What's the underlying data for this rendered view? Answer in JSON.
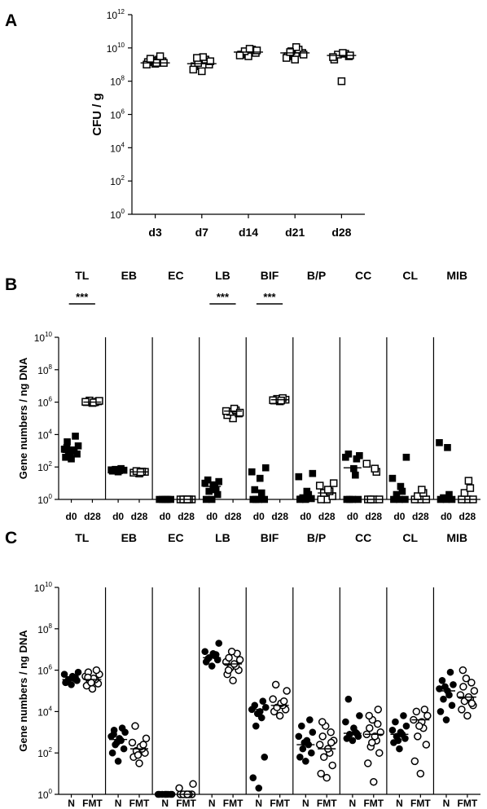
{
  "chart_data": [
    {
      "panel": "A",
      "type": "scatter",
      "ylabel": "CFU / g",
      "yscale": "log10",
      "ylim_exp": [
        0,
        12
      ],
      "yticks_exp": [
        0,
        2,
        4,
        6,
        8,
        10,
        12
      ],
      "categories": [
        "d3",
        "d7",
        "d14",
        "d21",
        "d28"
      ],
      "groups": [
        {
          "x": "d3",
          "marker": "open-square",
          "median_exp": 9.1,
          "points_exp": [
            9.05,
            9.15,
            9.2,
            9.25,
            9.3,
            9.1,
            9.0,
            9.1,
            9.35,
            9.5
          ]
        },
        {
          "x": "d7",
          "marker": "open-square",
          "median_exp": 9.05,
          "points_exp": [
            8.6,
            8.9,
            9.0,
            9.1,
            9.3,
            9.45,
            8.7,
            9.2,
            9.4
          ]
        },
        {
          "x": "d14",
          "marker": "open-square",
          "median_exp": 9.75,
          "points_exp": [
            9.5,
            9.6,
            9.7,
            9.8,
            9.9,
            9.95,
            9.55,
            9.85
          ]
        },
        {
          "x": "d21",
          "marker": "open-square",
          "median_exp": 9.7,
          "points_exp": [
            9.3,
            9.5,
            9.7,
            9.8,
            9.9,
            10.05,
            9.4,
            9.6,
            9.75
          ]
        },
        {
          "x": "d28",
          "marker": "open-square",
          "median_exp": 9.55,
          "points_exp": [
            8.0,
            9.3,
            9.5,
            9.6,
            9.65,
            9.7,
            9.45,
            9.55
          ]
        }
      ]
    },
    {
      "panel": "B",
      "type": "scatter",
      "ylabel": "Gene numbers / ng DNA",
      "yscale": "log10",
      "ylim_exp": [
        0,
        10
      ],
      "yticks_exp": [
        0,
        2,
        4,
        6,
        8,
        10
      ],
      "panels": [
        "TL",
        "EB",
        "EC",
        "LB",
        "BIF",
        "B/P",
        "CC",
        "CL",
        "MIB"
      ],
      "xticks": [
        "d0",
        "d28"
      ],
      "significance": {
        "TL": "***",
        "LB": "***",
        "BIF": "***"
      },
      "groups": [
        {
          "panel": "TL",
          "x": "d0",
          "marker": "filled-square",
          "median_exp": 2.9,
          "points_exp": [
            2.5,
            2.6,
            2.8,
            2.9,
            3.0,
            3.05,
            3.1,
            3.3,
            3.55,
            3.9,
            2.7,
            3.2
          ]
        },
        {
          "panel": "TL",
          "x": "d28",
          "marker": "open-square",
          "median_exp": 6.0,
          "points_exp": [
            5.95,
            6.0,
            6.05,
            6.1,
            6.0,
            5.98,
            6.02,
            6.08
          ]
        },
        {
          "panel": "EB",
          "x": "d0",
          "marker": "filled-square",
          "median_exp": 1.8,
          "points_exp": [
            1.7,
            1.75,
            1.8,
            1.85,
            1.9,
            1.78,
            1.82
          ]
        },
        {
          "panel": "EB",
          "x": "d28",
          "marker": "open-square",
          "median_exp": 1.7,
          "points_exp": [
            1.6,
            1.65,
            1.7,
            1.75,
            1.72,
            1.68
          ]
        },
        {
          "panel": "EC",
          "x": "d0",
          "marker": "filled-square",
          "median_exp": 0,
          "points_exp": [
            0,
            0,
            0,
            0,
            0,
            0
          ]
        },
        {
          "panel": "EC",
          "x": "d28",
          "marker": "open-square",
          "median_exp": 0,
          "points_exp": [
            0,
            0,
            0,
            0,
            0,
            0
          ]
        },
        {
          "panel": "LB",
          "x": "d0",
          "marker": "filled-square",
          "median_exp": 0.8,
          "points_exp": [
            0,
            0,
            0.3,
            0.5,
            0.7,
            0.9,
            1.0,
            1.1,
            1.2,
            0.6
          ]
        },
        {
          "panel": "LB",
          "x": "d28",
          "marker": "open-square",
          "median_exp": 5.45,
          "points_exp": [
            5.0,
            5.2,
            5.3,
            5.4,
            5.5,
            5.6,
            5.45,
            5.35
          ]
        },
        {
          "panel": "BIF",
          "x": "d0",
          "marker": "filled-square",
          "median_exp": 0,
          "points_exp": [
            0,
            0,
            0,
            0,
            0.4,
            1.3,
            1.7,
            1.95,
            0.6
          ]
        },
        {
          "panel": "BIF",
          "x": "d28",
          "marker": "open-square",
          "median_exp": 6.15,
          "points_exp": [
            6.05,
            6.1,
            6.15,
            6.2,
            6.25,
            6.1,
            6.12
          ]
        },
        {
          "panel": "B/P",
          "x": "d0",
          "marker": "filled-square",
          "median_exp": 0.2,
          "points_exp": [
            0,
            0,
            0.05,
            0.1,
            0.3,
            0.5,
            1.4,
            1.6
          ]
        },
        {
          "panel": "B/P",
          "x": "d28",
          "marker": "open-square",
          "median_exp": 0.4,
          "points_exp": [
            0,
            0,
            0.2,
            0.4,
            0.5,
            0.6,
            0.85,
            1.0
          ]
        },
        {
          "panel": "CC",
          "x": "d0",
          "marker": "filled-square",
          "median_exp": 1.95,
          "points_exp": [
            0,
            0,
            0,
            0,
            1.5,
            1.9,
            2.6,
            2.7,
            2.8,
            2.5
          ]
        },
        {
          "panel": "CC",
          "x": "d28",
          "marker": "open-square",
          "median_exp": 0,
          "points_exp": [
            0,
            0,
            0,
            0,
            1.7,
            1.9,
            2.2
          ]
        },
        {
          "panel": "CL",
          "x": "d0",
          "marker": "filled-square",
          "median_exp": 0,
          "points_exp": [
            0,
            0,
            0,
            0.3,
            0.5,
            0.8,
            1.3,
            2.6
          ]
        },
        {
          "panel": "CL",
          "x": "d28",
          "marker": "open-square",
          "median_exp": 0,
          "points_exp": [
            0,
            0,
            0,
            0.2,
            0.4,
            0.6
          ]
        },
        {
          "panel": "MIB",
          "x": "d0",
          "marker": "filled-square",
          "median_exp": 0.1,
          "points_exp": [
            0,
            0,
            0,
            0.1,
            0.3,
            3.2,
            3.5
          ]
        },
        {
          "panel": "MIB",
          "x": "d28",
          "marker": "open-square",
          "median_exp": 0,
          "points_exp": [
            0,
            0,
            0,
            0.4,
            0.7,
            1.15
          ]
        }
      ]
    },
    {
      "panel": "C",
      "type": "scatter",
      "ylabel": "Gene numbers / ng DNA",
      "yscale": "log10",
      "ylim_exp": [
        0,
        10
      ],
      "yticks_exp": [
        0,
        2,
        4,
        6,
        8,
        10
      ],
      "panels": [
        "TL",
        "EB",
        "EC",
        "LB",
        "BIF",
        "B/P",
        "CC",
        "CL",
        "MIB"
      ],
      "xticks": [
        "N",
        "FMT"
      ],
      "groups": [
        {
          "panel": "TL",
          "x": "N",
          "marker": "filled-circle",
          "median_exp": 5.55,
          "points_exp": [
            5.3,
            5.4,
            5.5,
            5.55,
            5.6,
            5.7,
            5.8,
            5.9,
            5.45,
            5.65
          ]
        },
        {
          "panel": "TL",
          "x": "FMT",
          "marker": "open-circle",
          "median_exp": 5.55,
          "points_exp": [
            5.1,
            5.25,
            5.35,
            5.5,
            5.55,
            5.6,
            5.7,
            5.8,
            5.9,
            6.0,
            5.4,
            5.65
          ]
        },
        {
          "panel": "EB",
          "x": "N",
          "marker": "filled-circle",
          "median_exp": 2.65,
          "points_exp": [
            1.6,
            2.0,
            2.2,
            2.4,
            2.6,
            2.7,
            2.8,
            3.0,
            3.1,
            3.2,
            2.5,
            2.9
          ]
        },
        {
          "panel": "EB",
          "x": "FMT",
          "marker": "open-circle",
          "median_exp": 2.2,
          "points_exp": [
            1.5,
            1.8,
            2.0,
            2.1,
            2.2,
            2.3,
            2.5,
            2.7,
            3.3,
            2.4,
            1.9
          ]
        },
        {
          "panel": "EC",
          "x": "N",
          "marker": "filled-circle",
          "median_exp": 0,
          "points_exp": [
            0,
            0,
            0,
            0,
            0,
            0,
            0,
            0
          ]
        },
        {
          "panel": "EC",
          "x": "FMT",
          "marker": "open-circle",
          "median_exp": 0,
          "points_exp": [
            0,
            0,
            0,
            0,
            0,
            0,
            0.3,
            0.5
          ]
        },
        {
          "panel": "LB",
          "x": "N",
          "marker": "filled-circle",
          "median_exp": 6.6,
          "points_exp": [
            6.2,
            6.4,
            6.5,
            6.6,
            6.7,
            6.8,
            6.9,
            7.3,
            6.55,
            6.75
          ]
        },
        {
          "panel": "LB",
          "x": "FMT",
          "marker": "open-circle",
          "median_exp": 6.3,
          "points_exp": [
            5.5,
            5.8,
            6.0,
            6.1,
            6.2,
            6.3,
            6.4,
            6.5,
            6.6,
            6.8,
            6.9,
            6.0
          ]
        },
        {
          "panel": "BIF",
          "x": "N",
          "marker": "filled-circle",
          "median_exp": 4.1,
          "points_exp": [
            0.3,
            0.8,
            1.8,
            3.3,
            3.7,
            4.0,
            4.1,
            4.2,
            4.3,
            4.5,
            3.9
          ]
        },
        {
          "panel": "BIF",
          "x": "FMT",
          "marker": "open-circle",
          "median_exp": 4.3,
          "points_exp": [
            3.8,
            4.0,
            4.1,
            4.2,
            4.3,
            4.4,
            4.6,
            5.0,
            5.3,
            4.5
          ]
        },
        {
          "panel": "B/P",
          "x": "N",
          "marker": "filled-circle",
          "median_exp": 2.4,
          "points_exp": [
            1.6,
            1.8,
            2.0,
            2.2,
            2.4,
            2.6,
            2.8,
            3.0,
            3.3,
            3.6,
            2.5
          ]
        },
        {
          "panel": "B/P",
          "x": "FMT",
          "marker": "open-circle",
          "median_exp": 2.2,
          "points_exp": [
            0.8,
            1.0,
            1.4,
            1.8,
            2.0,
            2.2,
            2.4,
            2.6,
            2.8,
            3.0,
            3.3,
            3.5,
            2.5
          ]
        },
        {
          "panel": "CC",
          "x": "N",
          "marker": "filled-circle",
          "median_exp": 2.95,
          "points_exp": [
            2.6,
            2.7,
            2.8,
            2.9,
            3.0,
            3.2,
            3.5,
            3.8,
            4.6,
            2.95
          ]
        },
        {
          "panel": "CC",
          "x": "FMT",
          "marker": "open-circle",
          "median_exp": 2.9,
          "points_exp": [
            0.6,
            1.5,
            2.0,
            2.3,
            2.6,
            2.8,
            2.9,
            3.0,
            3.2,
            3.4,
            3.6,
            3.8,
            4.1,
            2.5
          ]
        },
        {
          "panel": "CL",
          "x": "N",
          "marker": "filled-circle",
          "median_exp": 2.9,
          "points_exp": [
            2.2,
            2.5,
            2.7,
            2.8,
            2.9,
            3.0,
            3.1,
            3.3,
            3.5,
            3.8,
            2.6
          ]
        },
        {
          "panel": "CL",
          "x": "FMT",
          "marker": "open-circle",
          "median_exp": 3.6,
          "points_exp": [
            1.0,
            1.6,
            2.4,
            2.8,
            3.2,
            3.5,
            3.6,
            3.8,
            4.0,
            4.1,
            3.3
          ]
        },
        {
          "panel": "MIB",
          "x": "N",
          "marker": "filled-circle",
          "median_exp": 5.0,
          "points_exp": [
            3.6,
            4.0,
            4.3,
            4.6,
            4.8,
            5.0,
            5.1,
            5.3,
            5.5,
            5.9,
            5.2
          ]
        },
        {
          "panel": "MIB",
          "x": "FMT",
          "marker": "open-circle",
          "median_exp": 4.7,
          "points_exp": [
            3.8,
            4.1,
            4.3,
            4.5,
            4.6,
            4.7,
            4.8,
            5.0,
            5.2,
            5.4,
            5.6,
            6.0,
            4.4
          ]
        }
      ]
    }
  ]
}
